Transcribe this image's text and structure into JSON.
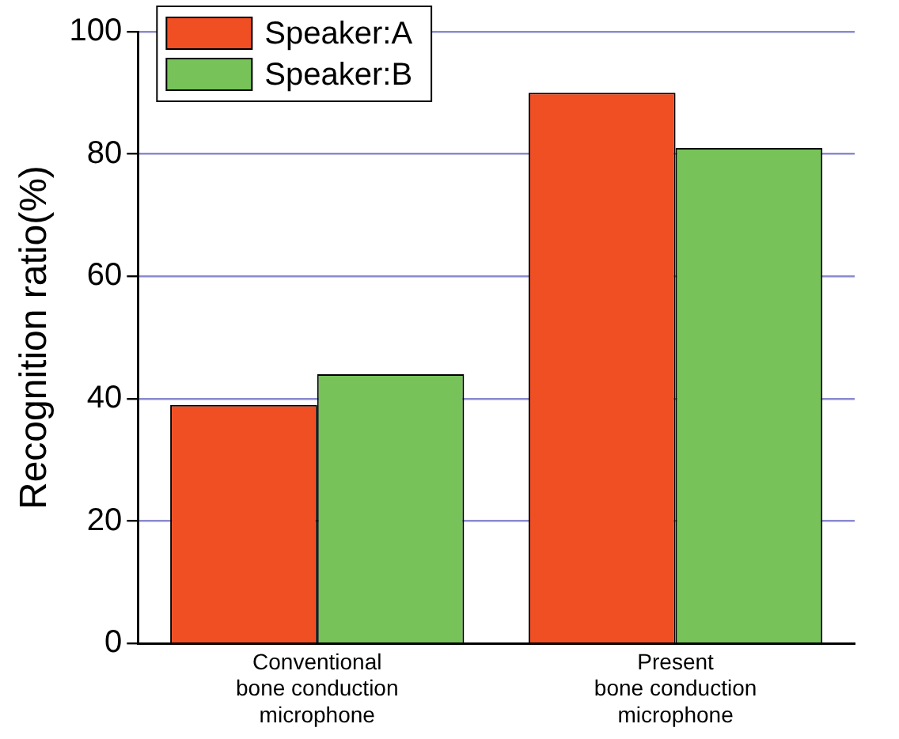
{
  "chart_data": {
    "type": "bar",
    "ylabel": "Recognition ratio(%)",
    "categories": [
      "Conventional\nbone conduction\nmicrophone",
      "Present\nbone conduction\nmicrophone"
    ],
    "series": [
      {
        "name": "Speaker:A",
        "color": "#f04e23",
        "values": [
          39,
          90
        ]
      },
      {
        "name": "Speaker:B",
        "color": "#77c35a",
        "values": [
          44,
          81
        ]
      }
    ],
    "ylim": [
      0,
      100
    ],
    "yticks": [
      0,
      20,
      40,
      60,
      80,
      100
    ],
    "grid": "y",
    "legend": "top left"
  }
}
